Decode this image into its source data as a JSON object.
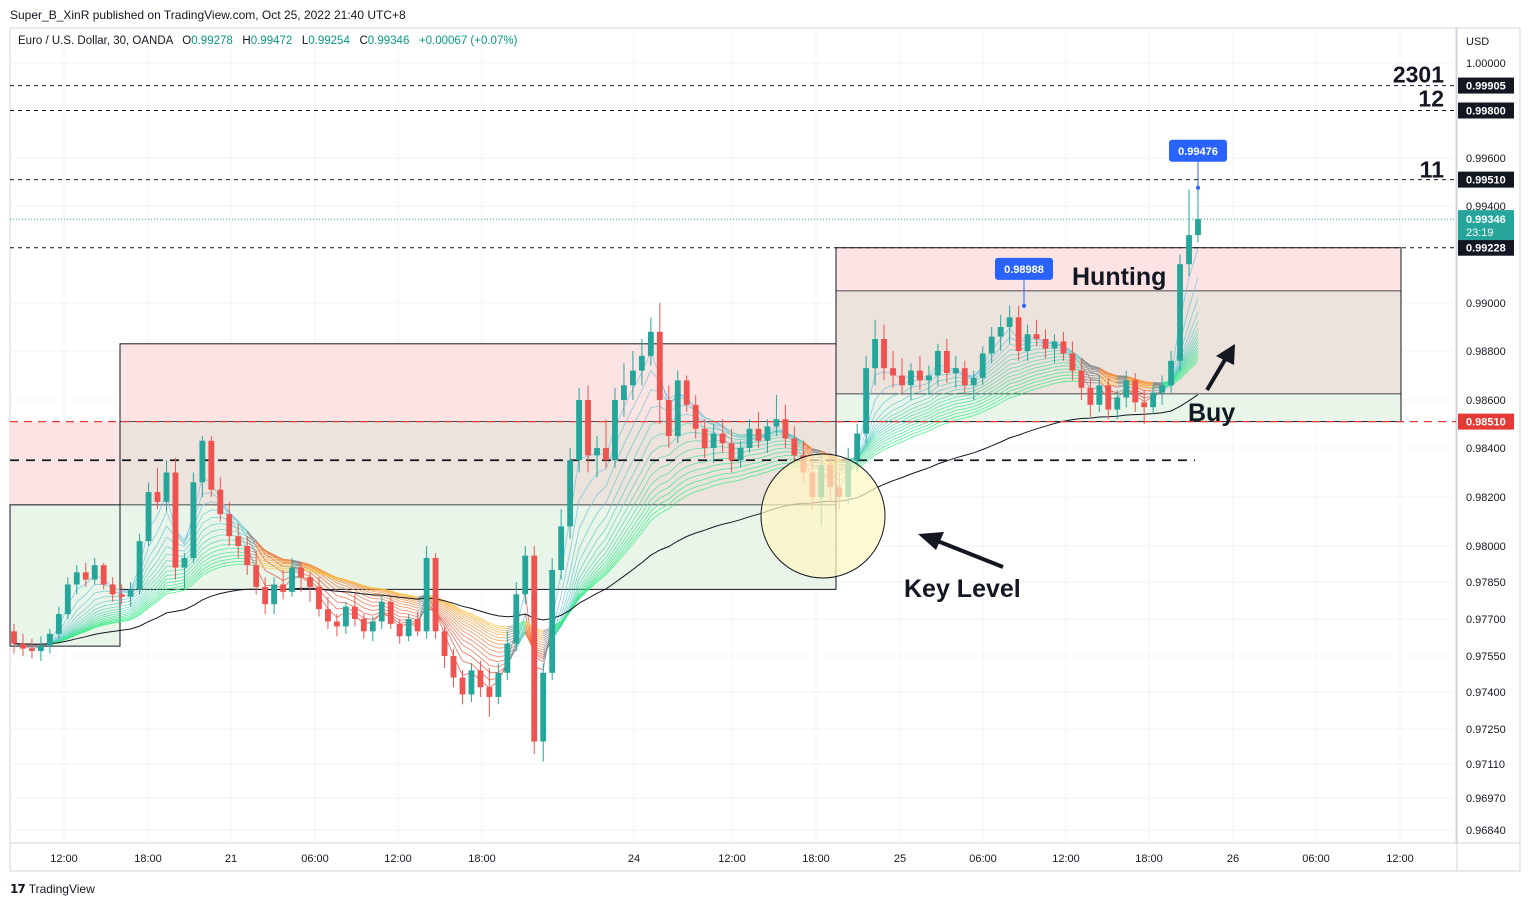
{
  "header": {
    "caption": "Super_B_XinR published on TradingView.com, Oct 25, 2022 21:40 UTC+8",
    "symbol": "Euro / U.S. Dollar, 30, OANDA",
    "open_label": "O",
    "open": "0.99278",
    "high_label": "H",
    "high": "0.99472",
    "low_label": "L",
    "low": "0.99254",
    "close_label": "C",
    "close": "0.99346",
    "change": "+0.00067 (+0.07%)"
  },
  "footer": {
    "brand": "TradingView",
    "logo_glyph": "17"
  },
  "colors": {
    "up": "#26a69a",
    "down": "#ef5350",
    "accent_blue": "#2962ff",
    "supply_zone": "#fde4e4",
    "overlap_zone": "#ece3dc",
    "demand_zone": "#e9f5e9",
    "key_circle": "#fff7c2"
  },
  "chart_data": {
    "type": "candlestick",
    "currency_label": "USD",
    "y_ticks": [
      "1.00000",
      "0.99600",
      "0.99400",
      "0.99000",
      "0.98800",
      "0.98600",
      "0.98400",
      "0.98200",
      "0.98000",
      "0.97850",
      "0.97700",
      "0.97550",
      "0.97400",
      "0.97250",
      "0.97110",
      "0.96970",
      "0.96840"
    ],
    "x_ticks": [
      "12:00",
      "18:00",
      "21",
      "06:00",
      "12:00",
      "18:00",
      "24",
      "12:00",
      "18:00",
      "25",
      "06:00",
      "12:00",
      "18:00",
      "26",
      "06:00",
      "12:00"
    ],
    "price_tags": [
      {
        "value": "0.99905",
        "style": "dark"
      },
      {
        "value": "0.99800",
        "style": "dark"
      },
      {
        "value": "0.99510",
        "style": "dark"
      },
      {
        "value": "0.99228",
        "style": "dark"
      },
      {
        "value": "0.98510",
        "style": "red"
      }
    ],
    "last_price": {
      "value": "0.99346",
      "countdown": "23:19"
    },
    "level_labels": [
      {
        "text": "2301",
        "price": 0.9996
      },
      {
        "text": "12",
        "price": 0.9986
      },
      {
        "text": "11",
        "price": 0.9956
      }
    ],
    "callouts": [
      {
        "text": "0.99476",
        "price": 0.99476
      },
      {
        "text": "0.98988",
        "price": 0.98988
      }
    ],
    "annotations": [
      "Hunting",
      "Buy",
      "Key Level"
    ],
    "candles_ohlc": [
      [
        0.9765,
        0.9768,
        0.9756,
        0.976
      ],
      [
        0.976,
        0.9764,
        0.9755,
        0.9758
      ],
      [
        0.9758,
        0.9762,
        0.9754,
        0.9757
      ],
      [
        0.9757,
        0.9763,
        0.9753,
        0.9759
      ],
      [
        0.9759,
        0.9766,
        0.9756,
        0.9764
      ],
      [
        0.9764,
        0.9775,
        0.9762,
        0.9772
      ],
      [
        0.9772,
        0.9787,
        0.977,
        0.9784
      ],
      [
        0.9784,
        0.9792,
        0.978,
        0.9789
      ],
      [
        0.9789,
        0.9793,
        0.9783,
        0.9786
      ],
      [
        0.9786,
        0.9795,
        0.9784,
        0.9792
      ],
      [
        0.9792,
        0.9793,
        0.9782,
        0.9784
      ],
      [
        0.9784,
        0.9787,
        0.9777,
        0.978
      ],
      [
        0.978,
        0.9784,
        0.9776,
        0.9779
      ],
      [
        0.9779,
        0.9785,
        0.9775,
        0.9782
      ],
      [
        0.9782,
        0.9805,
        0.978,
        0.9802
      ],
      [
        0.9802,
        0.9826,
        0.98,
        0.9822
      ],
      [
        0.9822,
        0.9832,
        0.9815,
        0.9818
      ],
      [
        0.9818,
        0.9835,
        0.9814,
        0.983
      ],
      [
        0.983,
        0.9836,
        0.9786,
        0.9791
      ],
      [
        0.9791,
        0.9797,
        0.9782,
        0.9795
      ],
      [
        0.9795,
        0.983,
        0.9793,
        0.9826
      ],
      [
        0.9826,
        0.9845,
        0.982,
        0.9843
      ],
      [
        0.9843,
        0.9845,
        0.982,
        0.9823
      ],
      [
        0.9823,
        0.9828,
        0.981,
        0.9813
      ],
      [
        0.9813,
        0.9818,
        0.98,
        0.9804
      ],
      [
        0.9804,
        0.9809,
        0.9795,
        0.98
      ],
      [
        0.98,
        0.9804,
        0.9788,
        0.9792
      ],
      [
        0.9792,
        0.9798,
        0.978,
        0.9783
      ],
      [
        0.9783,
        0.9787,
        0.9772,
        0.9776
      ],
      [
        0.9776,
        0.9787,
        0.9772,
        0.9784
      ],
      [
        0.9784,
        0.979,
        0.9778,
        0.9781
      ],
      [
        0.9781,
        0.9795,
        0.9779,
        0.9791
      ],
      [
        0.9791,
        0.9793,
        0.9781,
        0.9787
      ],
      [
        0.9787,
        0.9789,
        0.9777,
        0.9783
      ],
      [
        0.9783,
        0.9787,
        0.9771,
        0.9774
      ],
      [
        0.9774,
        0.9779,
        0.9766,
        0.9769
      ],
      [
        0.9769,
        0.9772,
        0.9763,
        0.9767
      ],
      [
        0.9767,
        0.9777,
        0.9764,
        0.9775
      ],
      [
        0.9775,
        0.978,
        0.9767,
        0.977
      ],
      [
        0.977,
        0.9772,
        0.9762,
        0.9765
      ],
      [
        0.9765,
        0.9771,
        0.9761,
        0.9769
      ],
      [
        0.9769,
        0.978,
        0.9766,
        0.9777
      ],
      [
        0.9777,
        0.9779,
        0.9766,
        0.9768
      ],
      [
        0.9768,
        0.977,
        0.976,
        0.9763
      ],
      [
        0.9763,
        0.9772,
        0.9761,
        0.977
      ],
      [
        0.977,
        0.9773,
        0.9763,
        0.9765
      ],
      [
        0.9765,
        0.98,
        0.9762,
        0.9795
      ],
      [
        0.9795,
        0.9797,
        0.9762,
        0.9765
      ],
      [
        0.9765,
        0.9767,
        0.975,
        0.9755
      ],
      [
        0.9755,
        0.9758,
        0.9742,
        0.9746
      ],
      [
        0.9746,
        0.9749,
        0.9735,
        0.9739
      ],
      [
        0.9739,
        0.9752,
        0.9736,
        0.9749
      ],
      [
        0.9749,
        0.9753,
        0.9738,
        0.9742
      ],
      [
        0.9742,
        0.975,
        0.973,
        0.9738
      ],
      [
        0.9738,
        0.9752,
        0.9735,
        0.9748
      ],
      [
        0.9748,
        0.9765,
        0.9745,
        0.976
      ],
      [
        0.976,
        0.9785,
        0.9757,
        0.978
      ],
      [
        0.978,
        0.98,
        0.9776,
        0.9796
      ],
      [
        0.9796,
        0.98,
        0.9715,
        0.972
      ],
      [
        0.972,
        0.9752,
        0.9712,
        0.9748
      ],
      [
        0.9748,
        0.9795,
        0.9745,
        0.979
      ],
      [
        0.979,
        0.9815,
        0.9786,
        0.9808
      ],
      [
        0.9808,
        0.984,
        0.9803,
        0.9835
      ],
      [
        0.9835,
        0.9865,
        0.983,
        0.986
      ],
      [
        0.986,
        0.9866,
        0.983,
        0.9837
      ],
      [
        0.9837,
        0.9845,
        0.9828,
        0.984
      ],
      [
        0.984,
        0.9852,
        0.9832,
        0.9835
      ],
      [
        0.9835,
        0.9865,
        0.9832,
        0.986
      ],
      [
        0.986,
        0.9875,
        0.9853,
        0.9866
      ],
      [
        0.9866,
        0.988,
        0.986,
        0.9872
      ],
      [
        0.9872,
        0.9885,
        0.9866,
        0.9878
      ],
      [
        0.9878,
        0.9894,
        0.9874,
        0.9888
      ],
      [
        0.9888,
        0.99,
        0.985,
        0.986
      ],
      [
        0.986,
        0.9866,
        0.984,
        0.9845
      ],
      [
        0.9845,
        0.9872,
        0.9842,
        0.9868
      ],
      [
        0.9868,
        0.987,
        0.9855,
        0.9858
      ],
      [
        0.9858,
        0.9862,
        0.9844,
        0.9848
      ],
      [
        0.9848,
        0.9852,
        0.9836,
        0.984
      ],
      [
        0.984,
        0.985,
        0.9834,
        0.9846
      ],
      [
        0.9846,
        0.9852,
        0.9838,
        0.9842
      ],
      [
        0.9842,
        0.9848,
        0.983,
        0.9835
      ],
      [
        0.9835,
        0.9843,
        0.9832,
        0.984
      ],
      [
        0.984,
        0.9852,
        0.9838,
        0.9848
      ],
      [
        0.9848,
        0.9855,
        0.984,
        0.9843
      ],
      [
        0.9843,
        0.9852,
        0.9838,
        0.9849
      ],
      [
        0.9849,
        0.9862,
        0.9845,
        0.9852
      ],
      [
        0.9852,
        0.9858,
        0.984,
        0.9844
      ],
      [
        0.9844,
        0.9849,
        0.9833,
        0.9837
      ],
      [
        0.9837,
        0.9843,
        0.9826,
        0.983
      ],
      [
        0.983,
        0.9836,
        0.9815,
        0.982
      ],
      [
        0.982,
        0.9837,
        0.9808,
        0.9833
      ],
      [
        0.9833,
        0.9838,
        0.9818,
        0.9824
      ],
      [
        0.9824,
        0.983,
        0.9815,
        0.982
      ],
      [
        0.982,
        0.984,
        0.9817,
        0.9835
      ],
      [
        0.9835,
        0.985,
        0.983,
        0.9846
      ],
      [
        0.9846,
        0.9878,
        0.9842,
        0.9873
      ],
      [
        0.9873,
        0.9893,
        0.9866,
        0.9885
      ],
      [
        0.9885,
        0.9891,
        0.9868,
        0.9873
      ],
      [
        0.9873,
        0.988,
        0.9865,
        0.987
      ],
      [
        0.987,
        0.9877,
        0.9862,
        0.9866
      ],
      [
        0.9866,
        0.9875,
        0.986,
        0.9872
      ],
      [
        0.9872,
        0.9878,
        0.9864,
        0.9868
      ],
      [
        0.9868,
        0.9874,
        0.9862,
        0.987
      ],
      [
        0.987,
        0.9883,
        0.9866,
        0.988
      ],
      [
        0.988,
        0.9885,
        0.9867,
        0.9871
      ],
      [
        0.9871,
        0.9878,
        0.9865,
        0.9873
      ],
      [
        0.9873,
        0.9876,
        0.9863,
        0.9866
      ],
      [
        0.9866,
        0.9872,
        0.986,
        0.9869
      ],
      [
        0.9869,
        0.9882,
        0.9866,
        0.9879
      ],
      [
        0.9879,
        0.989,
        0.9875,
        0.9886
      ],
      [
        0.9886,
        0.9895,
        0.988,
        0.989
      ],
      [
        0.989,
        0.9899,
        0.9883,
        0.9894
      ],
      [
        0.9894,
        0.9899,
        0.9876,
        0.988
      ],
      [
        0.988,
        0.9891,
        0.9876,
        0.9887
      ],
      [
        0.9887,
        0.9893,
        0.9882,
        0.9885
      ],
      [
        0.9885,
        0.9889,
        0.9877,
        0.9881
      ],
      [
        0.9881,
        0.9887,
        0.9875,
        0.9884
      ],
      [
        0.9884,
        0.9888,
        0.9876,
        0.9879
      ],
      [
        0.9879,
        0.9884,
        0.9868,
        0.9872
      ],
      [
        0.9872,
        0.9877,
        0.986,
        0.9865
      ],
      [
        0.9865,
        0.9869,
        0.9853,
        0.9858
      ],
      [
        0.9858,
        0.987,
        0.9855,
        0.9866
      ],
      [
        0.9866,
        0.9869,
        0.9852,
        0.9856
      ],
      [
        0.9856,
        0.9864,
        0.9852,
        0.9861
      ],
      [
        0.9861,
        0.9872,
        0.9857,
        0.9868
      ],
      [
        0.9868,
        0.9871,
        0.9855,
        0.9859
      ],
      [
        0.9859,
        0.9864,
        0.985,
        0.9857
      ],
      [
        0.9857,
        0.9866,
        0.9854,
        0.9863
      ],
      [
        0.9863,
        0.987,
        0.9858,
        0.9866
      ],
      [
        0.9866,
        0.988,
        0.9863,
        0.9876
      ],
      [
        0.9876,
        0.992,
        0.9872,
        0.9916
      ],
      [
        0.9916,
        0.9947,
        0.9911,
        0.9928
      ],
      [
        0.9928,
        0.9947,
        0.9925,
        0.99346
      ]
    ]
  }
}
